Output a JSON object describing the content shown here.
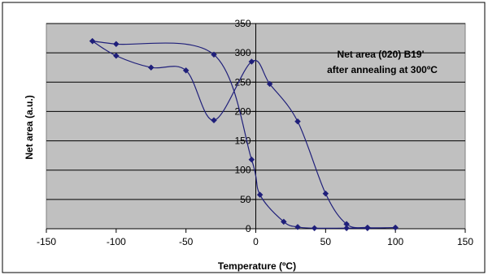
{
  "chart_data": {
    "type": "scatter",
    "xlabel": "Temperature (ºC)",
    "ylabel": "Net area (a.u.)",
    "xlim": [
      -150,
      150
    ],
    "ylim": [
      0,
      350
    ],
    "xticks": [
      -150,
      -100,
      -50,
      0,
      50,
      100,
      150
    ],
    "yticks": [
      0,
      50,
      100,
      150,
      200,
      250,
      300,
      350
    ],
    "grid": "horizontal",
    "annotation_lines": [
      "Net area (020) B19'",
      "after annealing at 300ºC"
    ],
    "colors": {
      "series": "#1f1f7a",
      "plot_bg": "#c0c0c0",
      "grid": "#000000"
    },
    "series": [
      {
        "marker": "diamond",
        "x": [
          -117,
          -100,
          -75,
          -50,
          -30,
          -3,
          10,
          30,
          50,
          65,
          80,
          100,
          80,
          65,
          42,
          30,
          20,
          3,
          -3,
          -30,
          -100,
          -117
        ],
        "y": [
          320,
          295,
          275,
          270,
          185,
          285,
          247,
          183,
          60,
          8,
          2,
          2,
          1,
          1,
          1,
          3,
          12,
          58,
          118,
          297,
          315,
          320
        ]
      }
    ]
  }
}
